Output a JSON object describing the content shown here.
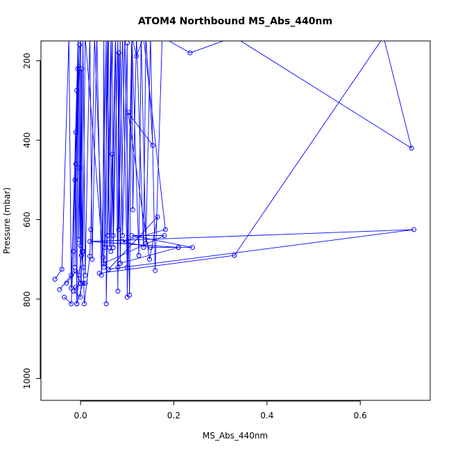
{
  "chart_data": {
    "type": "line",
    "title": "ATOM4 Northbound MS_Abs_440nm",
    "xlabel": "MS_Abs_440nm",
    "ylabel": "Pressure (mbar)",
    "xlim": [
      -0.085,
      0.75
    ],
    "ylim": [
      1055,
      150
    ],
    "y_reversed": true,
    "grid": false,
    "x_ticks": [
      0.0,
      0.2,
      0.4,
      0.6
    ],
    "x_tick_labels": [
      "0.0",
      "0.2",
      "0.4",
      "0.6"
    ],
    "y_ticks": [
      200,
      400,
      600,
      800,
      1000
    ],
    "y_tick_labels": [
      "200",
      "400",
      "600",
      "800",
      "1000"
    ],
    "series_color": "#0000ff",
    "series": [
      {
        "values": [
          [
            -0.055,
            750
          ],
          [
            -0.04,
            725
          ],
          [
            -0.025,
            140
          ],
          [
            -0.02,
            772
          ],
          [
            -0.005,
            140
          ],
          [
            -0.012,
            720
          ],
          [
            -0.01,
            380
          ],
          [
            -0.008,
            812
          ],
          [
            -0.005,
            140
          ],
          [
            0.0,
            760
          ],
          [
            -0.002,
            160
          ],
          [
            0.002,
            690
          ],
          [
            0.005,
            140
          ],
          [
            0.01,
            740
          ],
          [
            0.02,
            140
          ],
          [
            0.025,
            700
          ],
          [
            0.035,
            140
          ],
          [
            0.045,
            740
          ],
          [
            0.055,
            140
          ],
          [
            0.055,
            812
          ],
          [
            0.065,
            140
          ],
          [
            0.065,
            680
          ],
          [
            0.075,
            140
          ],
          [
            0.08,
            720
          ],
          [
            0.085,
            140
          ],
          [
            0.09,
            640
          ],
          [
            0.1,
            155
          ],
          [
            0.1,
            795
          ],
          [
            0.11,
            140
          ],
          [
            0.125,
            690
          ],
          [
            0.13,
            140
          ],
          [
            0.14,
            660
          ],
          [
            0.15,
            140
          ],
          [
            0.16,
            728
          ],
          [
            0.175,
            140
          ],
          [
            0.235,
            180
          ],
          [
            0.33,
            140
          ],
          [
            0.71,
            420
          ],
          [
            0.65,
            140
          ],
          [
            0.33,
            690
          ],
          [
            0.04,
            735
          ]
        ]
      },
      {
        "values": [
          [
            -0.045,
            776
          ],
          [
            -0.02,
            740
          ],
          [
            0.0,
            140
          ],
          [
            0.005,
            680
          ],
          [
            0.01,
            140
          ],
          [
            0.05,
            720
          ],
          [
            0.06,
            140
          ],
          [
            0.058,
            640
          ],
          [
            0.068,
            140
          ],
          [
            0.07,
            670
          ],
          [
            0.08,
            140
          ],
          [
            0.082,
            625
          ],
          [
            0.09,
            140
          ],
          [
            0.1,
            720
          ],
          [
            0.11,
            140
          ],
          [
            0.112,
            575
          ],
          [
            0.12,
            140
          ],
          [
            0.135,
            670
          ],
          [
            0.14,
            140
          ],
          [
            0.155,
            413
          ],
          [
            0.102,
            330
          ],
          [
            0.148,
            700
          ],
          [
            0.165,
            593
          ],
          [
            0.06,
            725
          ],
          [
            0.715,
            625
          ],
          [
            0.02,
            655
          ],
          [
            0.21,
            670
          ],
          [
            0.24,
            670
          ],
          [
            0.11,
            640
          ],
          [
            0.18,
            640
          ],
          [
            0.05,
            710
          ]
        ]
      },
      {
        "values": [
          [
            -0.035,
            795
          ],
          [
            -0.02,
            812
          ],
          [
            -0.015,
            680
          ],
          [
            -0.012,
            500
          ],
          [
            -0.01,
            460
          ],
          [
            -0.008,
            275
          ],
          [
            -0.006,
            220
          ],
          [
            -0.004,
            650
          ],
          [
            -0.002,
            470
          ],
          [
            0.0,
            665
          ],
          [
            0.002,
            220
          ],
          [
            0.004,
            680
          ],
          [
            0.006,
            720
          ],
          [
            0.008,
            812
          ],
          [
            0.02,
            692
          ],
          [
            0.022,
            625
          ],
          [
            0.03,
            140
          ],
          [
            0.048,
            695
          ],
          [
            0.05,
            140
          ],
          [
            0.052,
            670
          ],
          [
            0.058,
            140
          ],
          [
            0.062,
            670
          ],
          [
            0.068,
            435
          ],
          [
            0.07,
            640
          ],
          [
            0.075,
            140
          ],
          [
            0.08,
            780
          ],
          [
            0.082,
            180
          ],
          [
            0.085,
            710
          ],
          [
            0.095,
            140
          ],
          [
            0.105,
            790
          ],
          [
            0.11,
            140
          ],
          [
            0.12,
            188
          ],
          [
            0.135,
            140
          ],
          [
            0.182,
            625
          ],
          [
            0.09,
            655
          ],
          [
            0.15,
            670
          ],
          [
            0.21,
            670
          ],
          [
            0.085,
            710
          ]
        ]
      },
      {
        "values": [
          [
            -0.03,
            760
          ],
          [
            -0.01,
            730
          ],
          [
            0.0,
            760
          ],
          [
            0.005,
            760
          ],
          [
            -0.008,
            812
          ],
          [
            -0.004,
            740
          ],
          [
            0.004,
            680
          ],
          [
            0.0,
            795
          ],
          [
            -0.015,
            780
          ],
          [
            -0.01,
            770
          ],
          [
            0.01,
            760
          ]
        ]
      }
    ]
  }
}
